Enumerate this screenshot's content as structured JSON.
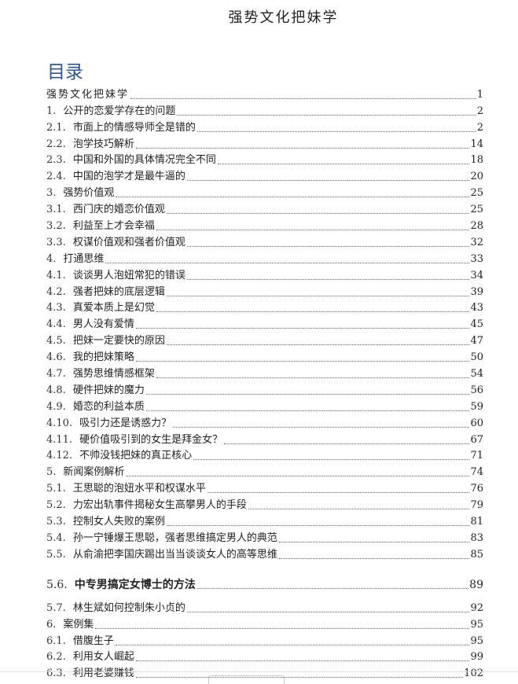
{
  "document": {
    "title": "强势文化把妹学",
    "toc_heading": "目录",
    "accent_color": "#2f5597"
  },
  "toc": [
    {
      "num": "",
      "label": "强势文化把妹学",
      "page": "1"
    },
    {
      "num": "1.",
      "label": "公开的恋爱学存在的问题",
      "page": "2"
    },
    {
      "num": "2.1.",
      "label": "市面上的情感导师全是错的",
      "page": "2"
    },
    {
      "num": "2.2.",
      "label": "泡学技巧解析",
      "page": "14"
    },
    {
      "num": "2.3.",
      "label": "中国和外国的具体情况完全不同",
      "page": "18"
    },
    {
      "num": "2.4.",
      "label": "中国的泡学才是最牛逼的",
      "page": "20"
    },
    {
      "num": "3.",
      "label": "强势价值观",
      "page": "25"
    },
    {
      "num": "3.1.",
      "label": "西门庆的婚恋价值观",
      "page": "25"
    },
    {
      "num": "3.2.",
      "label": "利益至上才会幸福",
      "page": "28"
    },
    {
      "num": "3.3.",
      "label": "权谋价值观和强者价值观",
      "page": "32"
    },
    {
      "num": "4.",
      "label": "打通思维",
      "page": "33"
    },
    {
      "num": "4.1.",
      "label": "谈谈男人泡妞常犯的错误",
      "page": "34"
    },
    {
      "num": "4.2.",
      "label": "强者把妹的底层逻辑",
      "page": "39"
    },
    {
      "num": "4.3.",
      "label": "真爱本质上是幻觉",
      "page": "43"
    },
    {
      "num": "4.4.",
      "label": "男人没有爱情",
      "page": "45"
    },
    {
      "num": "4.5.",
      "label": "把妹一定要快的原因",
      "page": "47"
    },
    {
      "num": "4.6.",
      "label": "我的把妹策略",
      "page": "50"
    },
    {
      "num": "4.7.",
      "label": "强势思维情感框架",
      "page": "54"
    },
    {
      "num": "4.8.",
      "label": "硬件把妹的魔力",
      "page": "56"
    },
    {
      "num": "4.9.",
      "label": "婚恋的利益本质",
      "page": "59"
    },
    {
      "num": "4.10.",
      "label": "吸引力还是诱惑力？",
      "page": "60"
    },
    {
      "num": "4.11.",
      "label": "硬价值吸引到的女生是拜金女？",
      "page": "67"
    },
    {
      "num": "4.12.",
      "label": "不帅没钱把妹的真正核心",
      "page": "71"
    },
    {
      "num": "5.",
      "label": "新闻案例解析",
      "page": "74"
    },
    {
      "num": "5.1.",
      "label": "王思聪的泡妞水平和权谋水平",
      "page": "76"
    },
    {
      "num": "5.2.",
      "label": "力宏出轨事件揭秘女生高攀男人的手段",
      "page": "79"
    },
    {
      "num": "5.3.",
      "label": "控制女人失败的案例",
      "page": "81"
    },
    {
      "num": "5.4.",
      "label": "孙一宁锤爆王思聪，强者思维搞定男人的典范",
      "page": "83"
    },
    {
      "num": "5.5.",
      "label": "从俞渝把李国庆踢出当当谈谈女人的高等思维",
      "page": "85"
    },
    {
      "num": "5.6.",
      "label": "中专男搞定女博士的方法",
      "page": "89"
    },
    {
      "num": "5.7.",
      "label": "林生斌如何控制朱小贞的",
      "page": "92"
    },
    {
      "num": "6.",
      "label": "案例集",
      "page": "95"
    },
    {
      "num": "6.1.",
      "label": "借腹生子",
      "page": "95"
    },
    {
      "num": "6.2.",
      "label": "利用女人崛起",
      "page": "99"
    },
    {
      "num": "6.3.",
      "label": "利用老婆赚钱",
      "page": "102"
    }
  ]
}
